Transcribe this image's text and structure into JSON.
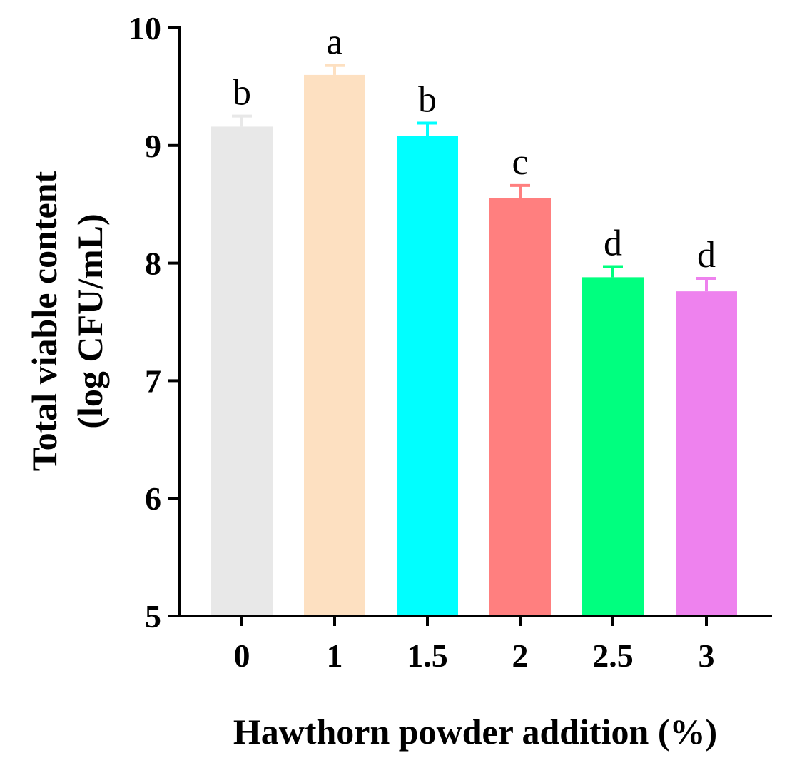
{
  "chart_data": {
    "type": "bar",
    "categories": [
      "0",
      "1",
      "1.5",
      "2",
      "2.5",
      "3"
    ],
    "values": [
      9.16,
      9.6,
      9.08,
      8.55,
      7.88,
      7.76
    ],
    "errors": [
      0.09,
      0.08,
      0.11,
      0.11,
      0.09,
      0.11
    ],
    "significance": [
      "b",
      "a",
      "b",
      "c",
      "d",
      "d"
    ],
    "colors": [
      "#e8e8e8",
      "#fde0c1",
      "#00ffff",
      "#ff7f7f",
      "#00ff7f",
      "#ee82ee"
    ],
    "xlabel": "Hawthorn powder addition (%)",
    "ylabel_line1": "Total viable content",
    "ylabel_line2": "(log CFU/mL)",
    "ylim": [
      5,
      10
    ],
    "yticks": [
      "5",
      "6",
      "7",
      "8",
      "9",
      "10"
    ],
    "grid": false
  }
}
